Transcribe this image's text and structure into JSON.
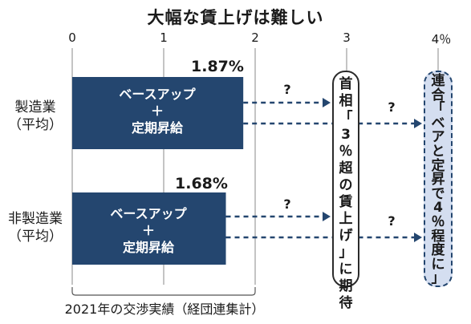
{
  "chart_data": {
    "type": "bar",
    "title": "大幅な賃上げは難しい",
    "categories": [
      {
        "name": "製造業",
        "sub": "（平均）"
      },
      {
        "name": "非製造業",
        "sub": "（平均）"
      }
    ],
    "values": [
      1.87,
      1.68
    ],
    "value_labels": [
      "1.87%",
      "1.68%"
    ],
    "bar_lines": [
      "ベースアップ",
      "＋",
      "定期昇給"
    ],
    "x_ticks": [
      "0",
      "1",
      "2",
      "3",
      "4％"
    ],
    "xlim": [
      0,
      4
    ],
    "grid": true,
    "annotations": {
      "question_mark": "?",
      "expectation_box": [
        "首",
        "相",
        "「",
        "3",
        "％",
        "超",
        "の",
        "賃",
        "上",
        "げ",
        "」",
        "に",
        "期",
        "待"
      ],
      "rengo_box": [
        "連",
        "合",
        "「",
        "ベ",
        "ア",
        "と",
        "定",
        "昇",
        "で",
        "4",
        "％",
        "程",
        "度",
        "に",
        "」"
      ]
    },
    "caption": "2021年の交渉実績（経団連集計）",
    "colors": {
      "bar": "#24466f",
      "rengo_fill": "#d4def0",
      "grid": "#888888"
    }
  }
}
